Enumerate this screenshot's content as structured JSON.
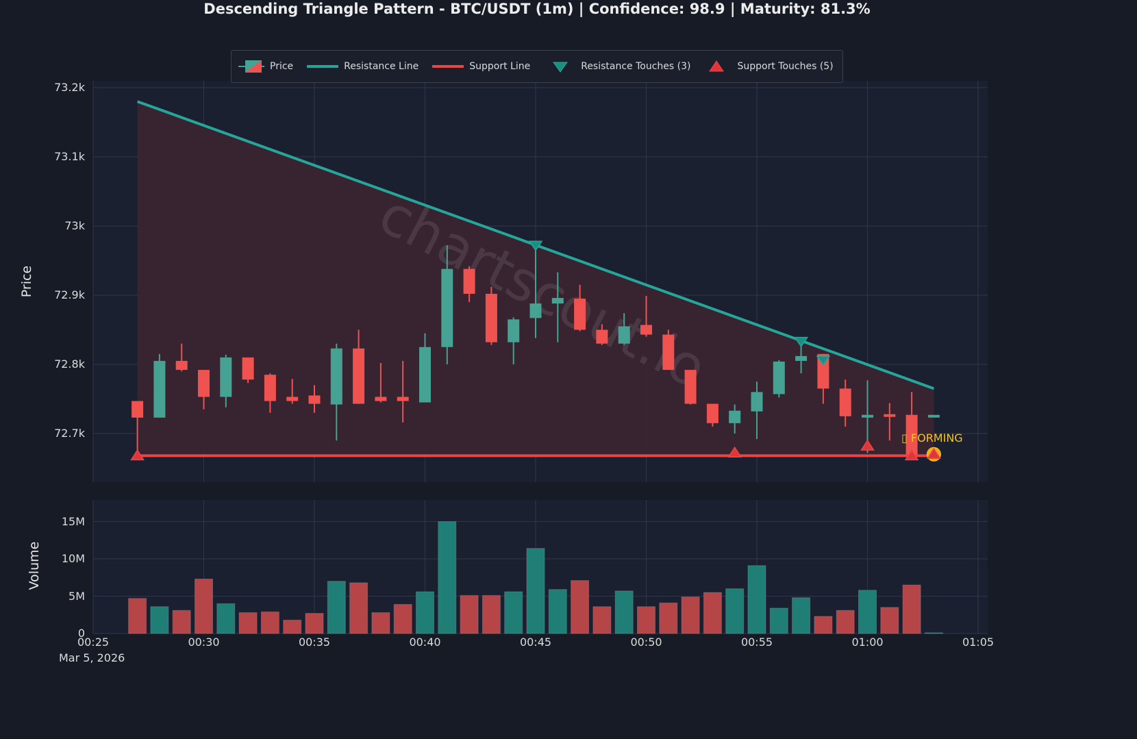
{
  "header": {
    "title": "Descending Triangle Pattern - BTC/USDT (1m) | Confidence: 98.9 | Maturity: 81.3%"
  },
  "legend": {
    "items": [
      {
        "label": "Price",
        "icon": "candlestick-icon"
      },
      {
        "label": "Resistance Line",
        "icon": "teal-line-icon"
      },
      {
        "label": "Support Line",
        "icon": "red-line-icon"
      },
      {
        "label": "Resistance Touches (3)",
        "icon": "triangle-down-icon"
      },
      {
        "label": "Support Touches (5)",
        "icon": "triangle-up-icon"
      }
    ]
  },
  "annotation": {
    "forming_label": "▯ FORMING"
  },
  "watermark": "chartscout.io",
  "colors": {
    "background": "#161b26",
    "plot_bg": "#1b2030",
    "bull": "#46a293",
    "bear": "#f0524f",
    "vol_bull": "#1f7f77",
    "vol_bear": "#b54547",
    "resistance": "#26a69a",
    "support": "#ef4444",
    "triangle_fill": "#3a2530",
    "grid": "#30364a",
    "forming": "#f5c518"
  },
  "axes": {
    "price_label": "Price",
    "volume_label": "Volume",
    "price_ticks": [
      "73.2k",
      "73.1k",
      "73k",
      "72.9k",
      "72.8k",
      "72.7k"
    ],
    "volume_ticks": [
      "15M",
      "10M",
      "5M",
      "0"
    ],
    "time_ticks": [
      "00:25",
      "00:30",
      "00:35",
      "00:40",
      "00:45",
      "00:50",
      "00:55",
      "01:00",
      "01:05"
    ],
    "date_label": "Mar 5, 2026"
  },
  "chart_data": {
    "type": "candlestick",
    "title": "Descending Triangle Pattern - BTC/USDT (1m) | Confidence: 98.9 | Maturity: 81.3%",
    "xlabel": "",
    "ylabel": "Price",
    "ylim": [
      72630,
      73210
    ],
    "volume_ylim": [
      0,
      18000000
    ],
    "grid": true,
    "legend_position": "top-center",
    "x": [
      "00:27",
      "00:28",
      "00:29",
      "00:30",
      "00:31",
      "00:32",
      "00:33",
      "00:34",
      "00:35",
      "00:36",
      "00:37",
      "00:38",
      "00:39",
      "00:40",
      "00:41",
      "00:42",
      "00:43",
      "00:44",
      "00:45",
      "00:46",
      "00:47",
      "00:48",
      "00:49",
      "00:50",
      "00:51",
      "00:52",
      "00:53",
      "00:54",
      "00:55",
      "00:56",
      "00:57",
      "00:58",
      "00:59",
      "01:00",
      "01:01",
      "01:02",
      "01:03"
    ],
    "open": [
      72747,
      72723,
      72805,
      72792,
      72753,
      72810,
      72785,
      72753,
      72755,
      72742,
      72823,
      72753,
      72753,
      72745,
      72825,
      72938,
      72902,
      72832,
      72867,
      72888,
      72895,
      72850,
      72830,
      72857,
      72843,
      72792,
      72743,
      72715,
      72732,
      72757,
      72805,
      72815,
      72765,
      72723,
      72728,
      72727,
      72727
    ],
    "close": [
      72723,
      72805,
      72792,
      72753,
      72810,
      72778,
      72747,
      72747,
      72743,
      72823,
      72743,
      72747,
      72747,
      72825,
      72938,
      72902,
      72832,
      72865,
      72888,
      72896,
      72850,
      72830,
      72855,
      72843,
      72792,
      72743,
      72715,
      72733,
      72760,
      72804,
      72812,
      72765,
      72725,
      72727,
      72726,
      72668,
      72727
    ],
    "high": [
      72747,
      72815,
      72830,
      72792,
      72814,
      72810,
      72787,
      72779,
      72770,
      72830,
      72850,
      72802,
      72805,
      72845,
      72972,
      72942,
      72912,
      72868,
      72972,
      72933,
      72915,
      72858,
      72874,
      72899,
      72850,
      72792,
      72743,
      72742,
      72775,
      72806,
      72828,
      72815,
      72778,
      72777,
      72744,
      72760,
      72727
    ],
    "low": [
      72668,
      72723,
      72790,
      72735,
      72738,
      72773,
      72730,
      72743,
      72730,
      72690,
      72743,
      72745,
      72716,
      72745,
      72800,
      72890,
      72828,
      72800,
      72838,
      72832,
      72848,
      72828,
      72828,
      72840,
      72792,
      72742,
      72710,
      72700,
      72692,
      72752,
      72787,
      72743,
      72710,
      72672,
      72690,
      72668,
      72727
    ],
    "volume": [
      4.7,
      3.6,
      3.1,
      7.3,
      4.0,
      2.8,
      2.9,
      1.8,
      2.7,
      7.0,
      6.8,
      2.8,
      3.9,
      5.6,
      15.0,
      5.1,
      5.1,
      5.6,
      11.4,
      5.9,
      7.1,
      3.6,
      5.7,
      3.6,
      4.1,
      4.9,
      5.5,
      6.0,
      9.1,
      3.4,
      4.8,
      2.3,
      3.1,
      5.8,
      3.5,
      6.5,
      0.1
    ],
    "volume_unit": "M",
    "resistance_line": {
      "start": {
        "x": "00:27",
        "y": 73180
      },
      "end": {
        "x": "01:03",
        "y": 72765
      }
    },
    "support_line": {
      "y": 72668,
      "start": "00:27",
      "end": "01:03"
    },
    "resistance_touches": [
      {
        "x": "00:45",
        "y": 72972
      },
      {
        "x": "00:57",
        "y": 72833
      },
      {
        "x": "00:58",
        "y": 72806
      }
    ],
    "support_touches": [
      {
        "x": "00:27",
        "y": 72668
      },
      {
        "x": "00:54",
        "y": 72672
      },
      {
        "x": "01:00",
        "y": 72682
      },
      {
        "x": "01:02",
        "y": 72668
      },
      {
        "x": "01:03",
        "y": 72670
      }
    ],
    "annotations": [
      {
        "text": "FORMING",
        "x": "01:03",
        "y": 72695
      }
    ]
  }
}
